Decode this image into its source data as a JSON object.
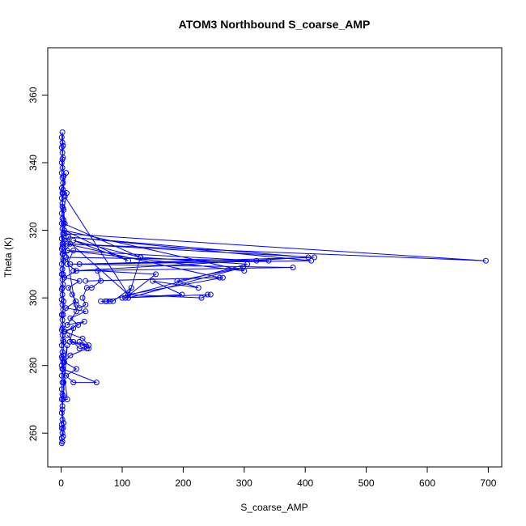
{
  "chart_data": {
    "type": "scatter",
    "title": "ATOM3 Northbound S_coarse_AMP",
    "xlabel": "S_coarse_AMP",
    "ylabel": "Theta (K)",
    "xlim": [
      -22,
      722
    ],
    "ylim": [
      250,
      374
    ],
    "xticks": [
      0,
      100,
      200,
      300,
      400,
      500,
      600,
      700
    ],
    "yticks": [
      260,
      280,
      300,
      320,
      340,
      360
    ],
    "grid": false,
    "legend": "none",
    "color": "#0000ff",
    "series": [
      {
        "style": "points-and-lines",
        "points": [
          [
            1,
            257
          ],
          [
            2,
            257.5
          ],
          [
            1,
            258.5
          ],
          [
            2,
            260
          ],
          [
            1,
            261.5
          ],
          [
            3,
            261.5
          ],
          [
            1,
            262.5
          ],
          [
            2,
            264
          ],
          [
            1,
            266
          ],
          [
            2,
            268
          ],
          [
            1,
            270
          ],
          [
            2,
            271.5
          ],
          [
            1,
            273
          ],
          [
            2,
            275
          ],
          [
            1,
            277
          ],
          [
            2,
            279
          ],
          [
            1,
            280
          ],
          [
            3,
            281
          ],
          [
            1,
            282.5
          ],
          [
            2,
            284
          ],
          [
            1,
            286
          ],
          [
            3,
            287.5
          ],
          [
            2,
            289
          ],
          [
            1,
            290.5
          ],
          [
            3,
            292
          ],
          [
            2,
            293.5
          ],
          [
            1,
            295
          ],
          [
            3,
            296.5
          ],
          [
            2,
            298
          ],
          [
            1,
            299.5
          ],
          [
            2,
            301
          ],
          [
            1,
            302.5
          ],
          [
            3,
            304
          ],
          [
            2,
            305.5
          ],
          [
            1,
            307
          ],
          [
            2,
            308.5
          ],
          [
            1,
            310
          ],
          [
            3,
            311.5
          ],
          [
            2,
            313
          ],
          [
            1,
            314.5
          ],
          [
            2,
            316
          ],
          [
            1,
            317.5
          ],
          [
            3,
            319
          ],
          [
            2,
            320.5
          ],
          [
            1,
            322
          ],
          [
            2,
            323.5
          ],
          [
            1,
            325
          ],
          [
            3,
            326.5
          ],
          [
            2,
            328
          ],
          [
            1,
            329.5
          ],
          [
            2,
            331
          ],
          [
            1,
            332.5
          ],
          [
            3,
            334
          ],
          [
            2,
            335.5
          ],
          [
            1,
            337
          ],
          [
            2,
            338.5
          ],
          [
            1,
            340
          ],
          [
            3,
            341.5
          ],
          [
            2,
            343
          ],
          [
            1,
            344.5
          ],
          [
            2,
            346
          ],
          [
            1,
            347.5
          ],
          [
            2,
            349
          ],
          [
            3,
            345
          ],
          [
            2,
            341
          ],
          [
            4,
            336
          ],
          [
            3,
            331
          ],
          [
            2,
            327
          ],
          [
            4,
            323
          ],
          [
            3,
            319
          ],
          [
            2,
            315
          ],
          [
            4,
            311
          ],
          [
            3,
            307
          ],
          [
            2,
            303
          ],
          [
            4,
            299
          ],
          [
            3,
            295
          ],
          [
            2,
            291
          ],
          [
            4,
            287
          ],
          [
            3,
            283
          ],
          [
            2,
            279
          ],
          [
            4,
            275
          ],
          [
            3,
            271
          ],
          [
            2,
            267
          ],
          [
            4,
            263
          ],
          [
            3,
            259
          ]
        ]
      },
      {
        "style": "points-and-lines",
        "points": [
          [
            8,
            337
          ],
          [
            3,
            332
          ],
          [
            9,
            331
          ],
          [
            4,
            326
          ],
          [
            6,
            322
          ],
          [
            5,
            319
          ],
          [
            696,
            311
          ],
          [
            4,
            316
          ],
          [
            12,
            318
          ],
          [
            15,
            316
          ],
          [
            3,
            313
          ],
          [
            20,
            314
          ],
          [
            10,
            310
          ],
          [
            25,
            308
          ],
          [
            5,
            306
          ],
          [
            30,
            305
          ],
          [
            12,
            303
          ],
          [
            18,
            301
          ],
          [
            24,
            299
          ],
          [
            8,
            297
          ],
          [
            40,
            296
          ],
          [
            15,
            294
          ],
          [
            28,
            292
          ],
          [
            6,
            290
          ],
          [
            35,
            288
          ],
          [
            45,
            286
          ],
          [
            20,
            287
          ],
          [
            10,
            289
          ],
          [
            30,
            285
          ],
          [
            42,
            285
          ],
          [
            15,
            283
          ],
          [
            5,
            281
          ],
          [
            25,
            279
          ],
          [
            8,
            277
          ],
          [
            20,
            275
          ],
          [
            58,
            275
          ],
          [
            3,
            279
          ],
          [
            10,
            286
          ],
          [
            3,
            270
          ],
          [
            10,
            270
          ],
          [
            2,
            282
          ]
        ]
      },
      {
        "style": "points-and-lines",
        "points": [
          [
            4,
            322
          ],
          [
            130,
            312
          ],
          [
            20,
            317
          ],
          [
            110,
            311
          ],
          [
            5,
            320
          ],
          [
            300,
            308
          ],
          [
            10,
            314
          ],
          [
            320,
            311
          ],
          [
            8,
            312
          ],
          [
            340,
            311
          ],
          [
            15,
            310
          ],
          [
            380,
            309
          ],
          [
            20,
            308
          ],
          [
            405,
            312
          ],
          [
            12,
            318
          ],
          [
            410,
            311
          ],
          [
            30,
            310
          ],
          [
            415,
            312
          ],
          [
            8,
            316
          ],
          [
            260,
            306
          ],
          [
            40,
            305
          ],
          [
            265,
            306
          ],
          [
            110,
            301
          ],
          [
            230,
            300
          ],
          [
            240,
            301
          ],
          [
            245,
            301
          ],
          [
            100,
            300
          ],
          [
            198,
            301
          ],
          [
            150,
            305
          ],
          [
            225,
            303
          ],
          [
            190,
            305
          ],
          [
            298,
            309
          ],
          [
            110,
            300
          ],
          [
            130,
            312
          ],
          [
            305,
            310
          ],
          [
            72,
            299
          ],
          [
            80,
            299
          ],
          [
            65,
            299
          ],
          [
            75,
            299
          ],
          [
            85,
            299
          ],
          [
            115,
            303
          ],
          [
            105,
            300
          ],
          [
            155,
            307
          ],
          [
            60,
            308
          ],
          [
            65,
            305
          ],
          [
            50,
            303
          ],
          [
            42,
            303
          ],
          [
            35,
            300
          ],
          [
            40,
            298
          ],
          [
            30,
            297
          ],
          [
            25,
            298
          ]
        ]
      },
      {
        "style": "points-and-lines",
        "points": [
          [
            6,
            330
          ],
          [
            110,
            301
          ],
          [
            4,
            318
          ],
          [
            25,
            296
          ],
          [
            10,
            292
          ],
          [
            38,
            293
          ],
          [
            5,
            290
          ],
          [
            20,
            291
          ],
          [
            14,
            287
          ],
          [
            35,
            286
          ],
          [
            45,
            285
          ],
          [
            30,
            287
          ]
        ]
      }
    ]
  }
}
